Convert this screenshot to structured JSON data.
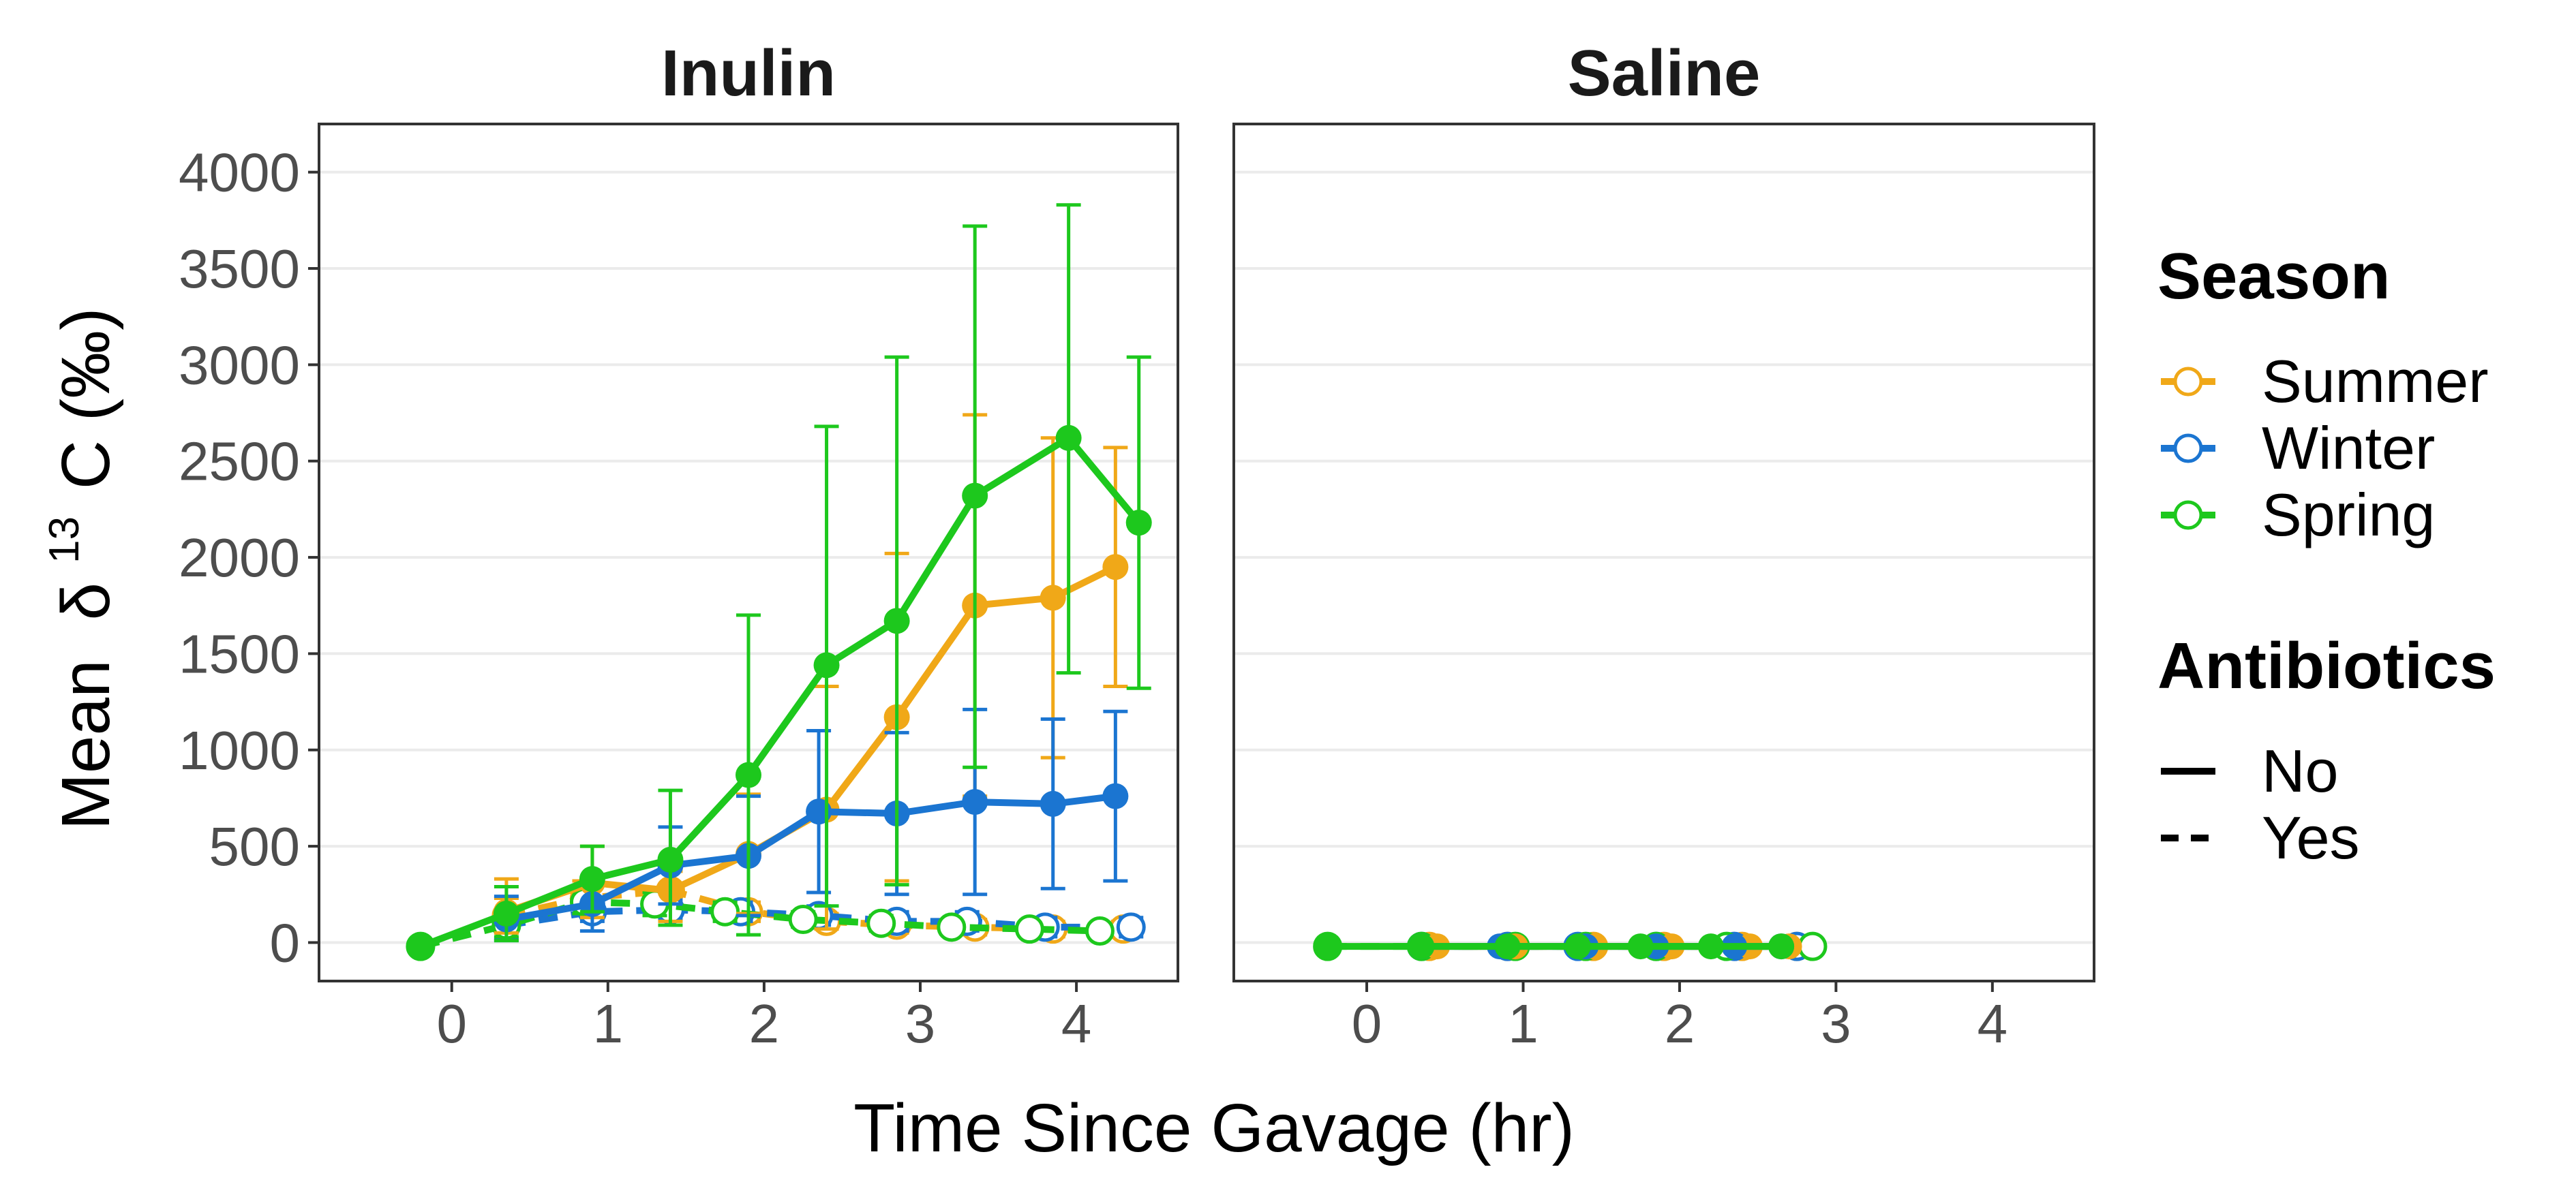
{
  "figure": {
    "y_label_prefix": "Mean",
    "y_label_delta": "δ",
    "y_label_sup": "13",
    "y_label_rest": "C (‰)",
    "x_label": "Time Since Gavage (hr)"
  },
  "legend": {
    "season_title": "Season",
    "season_items": [
      {
        "label": "Summer",
        "color": "#F0A818"
      },
      {
        "label": "Winter",
        "color": "#1B75D1"
      },
      {
        "label": "Spring",
        "color": "#1DC81D"
      }
    ],
    "antibiotics_title": "Antibiotics",
    "antibiotics_items": [
      {
        "label": "No",
        "linestyle": "solid"
      },
      {
        "label": "Yes",
        "linestyle": "dashed"
      }
    ]
  },
  "chart_data": [
    {
      "type": "line",
      "title": "Inulin",
      "xlim": [
        -0.85,
        4.65
      ],
      "ylim": [
        -200,
        4250
      ],
      "x_ticks": [
        0,
        1,
        2,
        3,
        4
      ],
      "y_ticks": [
        0,
        500,
        1000,
        1500,
        2000,
        2500,
        3000,
        3500,
        4000
      ],
      "grid": "horizontal",
      "series": [
        {
          "name": "Summer",
          "antibiotics": "No",
          "color": "#F0A818",
          "x": [
            0.35,
            0.9,
            1.4,
            1.9,
            2.4,
            2.85,
            3.35,
            3.85,
            4.25
          ],
          "y": [
            160,
            310,
            270,
            460,
            690,
            1170,
            1750,
            1790,
            1950
          ],
          "err": [
            [
              50,
              330
            ],
            [
              130,
              500
            ],
            [
              110,
              430
            ],
            [
              150,
              770
            ],
            [
              70,
              1330
            ],
            [
              320,
              2020
            ],
            [
              760,
              2740
            ],
            [
              960,
              2620
            ],
            [
              1330,
              2570
            ]
          ]
        },
        {
          "name": "Winter",
          "antibiotics": "No",
          "color": "#1B75D1",
          "x": [
            0.35,
            0.9,
            1.4,
            1.9,
            2.35,
            2.85,
            3.35,
            3.85,
            4.25
          ],
          "y": [
            120,
            200,
            400,
            450,
            680,
            670,
            730,
            720,
            760
          ],
          "err": [
            [
              10,
              240
            ],
            [
              60,
              340
            ],
            [
              200,
              600
            ],
            [
              140,
              760
            ],
            [
              260,
              1100
            ],
            [
              250,
              1090
            ],
            [
              250,
              1210
            ],
            [
              280,
              1160
            ],
            [
              320,
              1200
            ]
          ]
        },
        {
          "name": "Spring",
          "antibiotics": "No",
          "color": "#1DC81D",
          "x": [
            -0.2,
            0.35,
            0.9,
            1.4,
            1.9,
            2.4,
            2.85,
            3.35,
            3.95,
            4.4
          ],
          "y": [
            -20,
            150,
            330,
            430,
            870,
            1440,
            1670,
            2320,
            2620,
            2180
          ],
          "err": [
            [
              -20,
              -20
            ],
            [
              10,
              290
            ],
            [
              160,
              500
            ],
            [
              90,
              790
            ],
            [
              40,
              1700
            ],
            [
              190,
              2680
            ],
            [
              300,
              3040
            ],
            [
              910,
              3720
            ],
            [
              1400,
              3830
            ],
            [
              1320,
              3040
            ]
          ]
        },
        {
          "name": "Summer",
          "antibiotics": "Yes",
          "color": "#F0A818",
          "x": [
            0.35,
            0.85,
            1.4,
            1.9,
            2.4,
            2.85,
            3.35,
            3.85,
            4.3
          ],
          "y": [
            140,
            230,
            270,
            160,
            110,
            90,
            80,
            70,
            70
          ],
          "err": [
            [
              50,
              230
            ],
            [
              140,
              320
            ],
            [
              170,
              370
            ],
            [
              110,
              210
            ],
            [
              70,
              150
            ],
            [
              50,
              130
            ],
            [
              40,
              120
            ],
            [
              30,
              110
            ],
            [
              30,
              110
            ]
          ]
        },
        {
          "name": "Winter",
          "antibiotics": "Yes",
          "color": "#1B75D1",
          "x": [
            0.35,
            0.9,
            1.4,
            1.85,
            2.35,
            2.85,
            3.3,
            3.8,
            4.35
          ],
          "y": [
            90,
            160,
            170,
            160,
            140,
            110,
            110,
            80,
            80
          ],
          "err": [
            [
              20,
              160
            ],
            [
              110,
              210
            ],
            [
              120,
              220
            ],
            [
              110,
              210
            ],
            [
              90,
              190
            ],
            [
              60,
              160
            ],
            [
              60,
              160
            ],
            [
              30,
              130
            ],
            [
              30,
              130
            ]
          ]
        },
        {
          "name": "Spring",
          "antibiotics": "Yes",
          "color": "#1DC81D",
          "x": [
            -0.2,
            0.35,
            0.85,
            1.3,
            1.75,
            2.25,
            2.75,
            3.2,
            3.7,
            4.15
          ],
          "y": [
            -20,
            90,
            210,
            200,
            160,
            120,
            100,
            80,
            70,
            60
          ],
          "err": [
            [
              -20,
              -20
            ],
            [
              30,
              150
            ],
            [
              150,
              270
            ],
            [
              140,
              260
            ],
            [
              110,
              210
            ],
            [
              80,
              160
            ],
            [
              60,
              140
            ],
            [
              50,
              110
            ],
            [
              40,
              100
            ],
            [
              30,
              90
            ]
          ]
        }
      ]
    },
    {
      "type": "line",
      "title": "Saline",
      "xlim": [
        -0.85,
        4.65
      ],
      "ylim": [
        -200,
        4250
      ],
      "x_ticks": [
        0,
        1,
        2,
        3,
        4
      ],
      "y_ticks": [
        0,
        500,
        1000,
        1500,
        2000,
        2500,
        3000,
        3500,
        4000
      ],
      "grid": "horizontal",
      "series": [
        {
          "name": "Summer",
          "antibiotics": "No",
          "color": "#F0A818",
          "x": [
            0.45,
            0.95,
            1.45,
            1.95,
            2.45,
            2.7
          ],
          "y": [
            -20,
            -20,
            -20,
            -20,
            -20,
            -20
          ]
        },
        {
          "name": "Winter",
          "antibiotics": "No",
          "color": "#1B75D1",
          "x": [
            0.35,
            0.85,
            1.4,
            1.85,
            2.35,
            2.65
          ],
          "y": [
            -20,
            -20,
            -20,
            -20,
            -20,
            -20
          ]
        },
        {
          "name": "Spring",
          "antibiotics": "No",
          "color": "#1DC81D",
          "x": [
            -0.25,
            0.35,
            0.9,
            1.35,
            1.75,
            2.2,
            2.65
          ],
          "y": [
            -20,
            -20,
            -20,
            -20,
            -20,
            -20,
            -20
          ]
        },
        {
          "name": "Summer",
          "antibiotics": "Yes",
          "color": "#F0A818",
          "x": [
            0.4,
            0.9,
            1.45,
            1.9,
            2.4,
            2.75
          ],
          "y": [
            -20,
            -20,
            -20,
            -20,
            -20,
            -20
          ]
        },
        {
          "name": "Winter",
          "antibiotics": "Yes",
          "color": "#1B75D1",
          "x": [
            0.35,
            0.9,
            1.35,
            1.85,
            2.35,
            2.75
          ],
          "y": [
            -20,
            -20,
            -20,
            -20,
            -20,
            -20
          ]
        },
        {
          "name": "Spring",
          "antibiotics": "Yes",
          "color": "#1DC81D",
          "x": [
            -0.25,
            0.35,
            0.95,
            1.4,
            1.85,
            2.3,
            2.85
          ],
          "y": [
            -20,
            -20,
            -20,
            -20,
            -20,
            -20,
            -20
          ]
        }
      ]
    }
  ]
}
